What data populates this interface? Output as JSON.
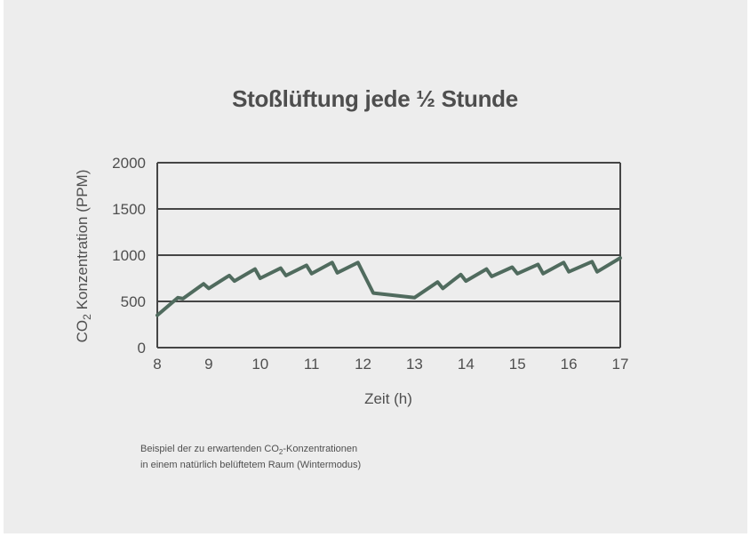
{
  "title": "Stoßlüftung jede ½ Stunde",
  "colors": {
    "background": "#ededed",
    "line": "#506b5e",
    "grid": "#454545",
    "text": "#4f4f4f"
  },
  "chart_data": {
    "type": "line",
    "title": "Stoßlüftung jede ½ Stunde",
    "xlabel": "Zeit (h)",
    "ylabel_main": "CO",
    "ylabel_sub": "2",
    "ylabel_rest": " Konzentration (PPM)",
    "xlim": [
      8,
      17
    ],
    "ylim": [
      0,
      2000
    ],
    "xticks": [
      "8",
      "9",
      "10",
      "11",
      "12",
      "13",
      "14",
      "15",
      "16",
      "17"
    ],
    "yticks": [
      "0",
      "500",
      "1000",
      "1500",
      "2000"
    ],
    "grid": "horizontal",
    "series": [
      {
        "x": [
          8,
          8.4,
          8.5,
          8.9,
          9.0,
          9.4,
          9.5,
          9.9,
          10.0,
          10.4,
          10.5,
          10.9,
          11.0,
          11.4,
          11.5,
          11.9,
          12.2,
          13.0,
          13.45,
          13.55,
          13.9,
          14.0,
          14.4,
          14.5,
          14.9,
          15.0,
          15.4,
          15.5,
          15.9,
          16.0,
          16.45,
          16.55,
          17.0
        ],
        "y": [
          350,
          540,
          530,
          690,
          640,
          780,
          720,
          850,
          750,
          860,
          780,
          890,
          800,
          920,
          810,
          920,
          590,
          540,
          710,
          640,
          790,
          720,
          850,
          770,
          870,
          800,
          900,
          800,
          920,
          820,
          930,
          820,
          970
        ]
      }
    ]
  },
  "note": {
    "line1_a": "Beispiel der zu erwartenden CO",
    "line1_sub": "2",
    "line1_b": "-Konzentrationen",
    "line2": "in einem natürlich belüftetem Raum (Wintermodus)"
  }
}
